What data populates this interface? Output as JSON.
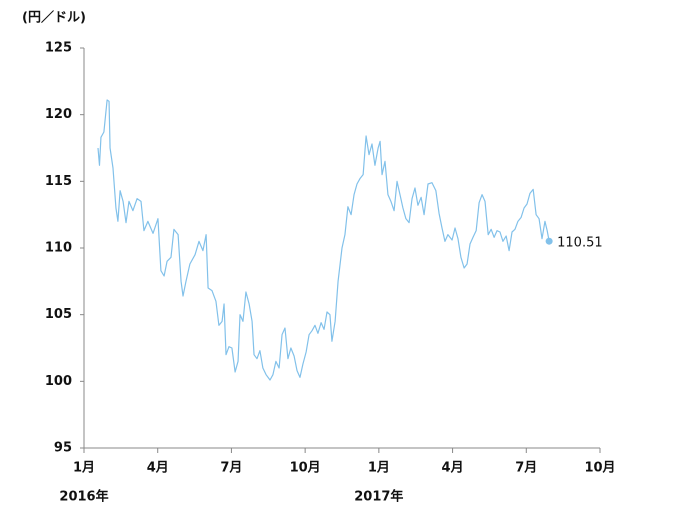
{
  "chart_data": {
    "type": "line",
    "y_label": "(円／ドル)",
    "color": "#82c1ea",
    "xlim": [
      0,
      21
    ],
    "xticks": [
      {
        "value": 0,
        "label": "1月"
      },
      {
        "value": 3,
        "label": "4月"
      },
      {
        "value": 6,
        "label": "7月"
      },
      {
        "value": 9,
        "label": "10月"
      },
      {
        "value": 12,
        "label": "1月"
      },
      {
        "value": 15,
        "label": "4月"
      },
      {
        "value": 18,
        "label": "7月"
      },
      {
        "value": 21,
        "label": "10月"
      }
    ],
    "annotations": [
      {
        "text": "2016年",
        "x": 0
      },
      {
        "text": "2017年",
        "x": 12
      }
    ],
    "ylim": [
      95,
      125
    ],
    "yticks": [
      95,
      100,
      105,
      110,
      115,
      120,
      125
    ],
    "x": [
      0.57,
      0.63,
      0.69,
      0.81,
      0.94,
      1.02,
      1.06,
      1.18,
      1.3,
      1.38,
      1.47,
      1.59,
      1.71,
      1.83,
      1.99,
      2.16,
      2.32,
      2.44,
      2.6,
      2.81,
      3.01,
      3.13,
      3.26,
      3.38,
      3.54,
      3.66,
      3.83,
      3.95,
      4.03,
      4.15,
      4.31,
      4.52,
      4.68,
      4.84,
      4.97,
      5.05,
      5.21,
      5.37,
      5.49,
      5.62,
      5.7,
      5.78,
      5.9,
      6.02,
      6.15,
      6.27,
      6.35,
      6.47,
      6.59,
      6.72,
      6.84,
      6.92,
      7.04,
      7.16,
      7.28,
      7.41,
      7.57,
      7.69,
      7.81,
      7.94,
      8.06,
      8.18,
      8.3,
      8.42,
      8.55,
      8.67,
      8.79,
      8.91,
      9.04,
      9.16,
      9.28,
      9.4,
      9.52,
      9.65,
      9.77,
      9.89,
      10.01,
      10.09,
      10.22,
      10.34,
      10.5,
      10.62,
      10.74,
      10.87,
      10.99,
      11.11,
      11.23,
      11.36,
      11.48,
      11.6,
      11.72,
      11.84,
      11.97,
      12.05,
      12.13,
      12.25,
      12.37,
      12.49,
      12.62,
      12.74,
      12.86,
      12.98,
      13.1,
      13.23,
      13.35,
      13.47,
      13.59,
      13.72,
      13.84,
      14.0,
      14.16,
      14.32,
      14.45,
      14.57,
      14.69,
      14.81,
      14.98,
      15.1,
      15.22,
      15.34,
      15.47,
      15.59,
      15.71,
      15.83,
      15.96,
      16.08,
      16.2,
      16.32,
      16.45,
      16.57,
      16.69,
      16.81,
      16.93,
      17.05,
      17.18,
      17.3,
      17.42,
      17.54,
      17.66,
      17.79,
      17.91,
      18.03,
      18.15,
      18.28,
      18.4,
      18.52,
      18.64,
      18.76,
      18.85,
      18.93
    ],
    "values": [
      117.5,
      116.2,
      118.3,
      118.7,
      121.1,
      121.0,
      117.5,
      116,
      113,
      112,
      114.3,
      113.5,
      111.9,
      113.5,
      112.8,
      113.7,
      113.5,
      111.3,
      112,
      111.1,
      112.2,
      108.3,
      107.9,
      109,
      109.3,
      111.4,
      111,
      107.5,
      106.4,
      107.5,
      108.8,
      109.5,
      110.5,
      109.8,
      111,
      107,
      106.8,
      106,
      104.2,
      104.5,
      105.8,
      102,
      102.6,
      102.5,
      100.7,
      101.5,
      105,
      104.5,
      106.7,
      105.8,
      104.5,
      102,
      101.7,
      102.3,
      101,
      100.5,
      100.1,
      100.5,
      101.5,
      101,
      103.5,
      104,
      101.7,
      102.5,
      101.9,
      100.8,
      100.3,
      101.3,
      102.2,
      103.5,
      103.8,
      104.2,
      103.6,
      104.4,
      103.9,
      105.2,
      105,
      103,
      104.5,
      107.5,
      110,
      111,
      113.1,
      112.5,
      114,
      114.8,
      115.2,
      115.5,
      118.4,
      117,
      117.8,
      116.2,
      117.5,
      118,
      115.5,
      116.5,
      114,
      113.5,
      112.8,
      115,
      114,
      113,
      112.2,
      111.9,
      113.7,
      114.5,
      113.2,
      113.8,
      112.5,
      114.8,
      114.9,
      114.3,
      112.6,
      111.5,
      110.5,
      111,
      110.6,
      111.5,
      110.7,
      109.3,
      108.5,
      108.8,
      110.3,
      110.8,
      111.3,
      113.4,
      114,
      113.5,
      111,
      111.4,
      110.8,
      111.3,
      111.2,
      110.5,
      110.9,
      109.8,
      111.2,
      111.4,
      112,
      112.3,
      113,
      113.3,
      114.1,
      114.4,
      112.5,
      112.2,
      110.7,
      112,
      111.3,
      110.51
    ]
  }
}
